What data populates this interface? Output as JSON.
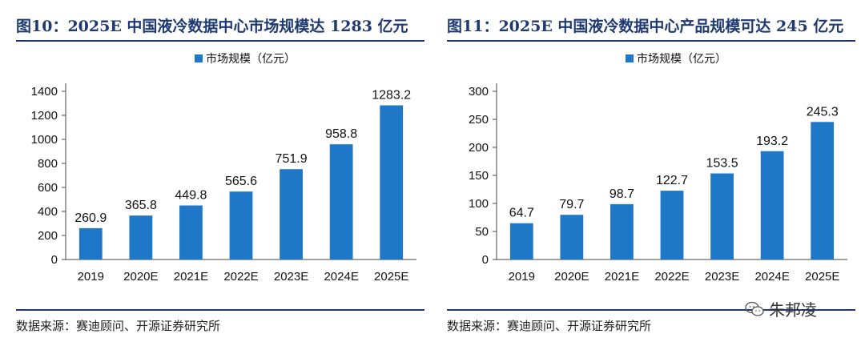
{
  "panels": [
    {
      "title": "图10：2025E 中国液冷数据中心市场规模达 1283 亿元",
      "source": "数据来源：赛迪顾问、开源证券研究所",
      "chart_data": {
        "type": "bar",
        "categories": [
          "2019",
          "2020E",
          "2021E",
          "2022E",
          "2023E",
          "2024E",
          "2025E"
        ],
        "series": [
          {
            "name": "市场规模（亿元）",
            "values": [
              260.9,
              365.8,
              449.8,
              565.6,
              751.9,
              958.8,
              1283.2
            ]
          }
        ],
        "data_labels": [
          "260.9",
          "365.8",
          "449.8",
          "565.6",
          "751.9",
          "958.8",
          "1283.2"
        ],
        "yticks": [
          0,
          200,
          400,
          600,
          800,
          1000,
          1200,
          1400
        ],
        "ylim": [
          0,
          1400
        ],
        "legend_position": "top-center",
        "grid": false,
        "color": "#1f77c8"
      }
    },
    {
      "title": "图11：2025E 中国液冷数据中心产品规模可达 245 亿元",
      "source": "数据来源：赛迪顾问、开源证券研究所",
      "chart_data": {
        "type": "bar",
        "categories": [
          "2019",
          "2020E",
          "2021E",
          "2022E",
          "2023E",
          "2024E",
          "2025E"
        ],
        "series": [
          {
            "name": "市场规模（亿元）",
            "values": [
              64.7,
              79.7,
              98.7,
              122.7,
              153.5,
              193.2,
              245.3
            ]
          }
        ],
        "data_labels": [
          "64.7",
          "79.7",
          "98.7",
          "122.7",
          "153.5",
          "193.2",
          "245.3"
        ],
        "yticks": [
          0,
          50,
          100,
          150,
          200,
          250,
          300
        ],
        "ylim": [
          0,
          300
        ],
        "legend_position": "top-center",
        "grid": false,
        "color": "#1f77c8"
      }
    }
  ],
  "watermark": {
    "text": "朱邦凌",
    "icon": "wechat-icon"
  }
}
